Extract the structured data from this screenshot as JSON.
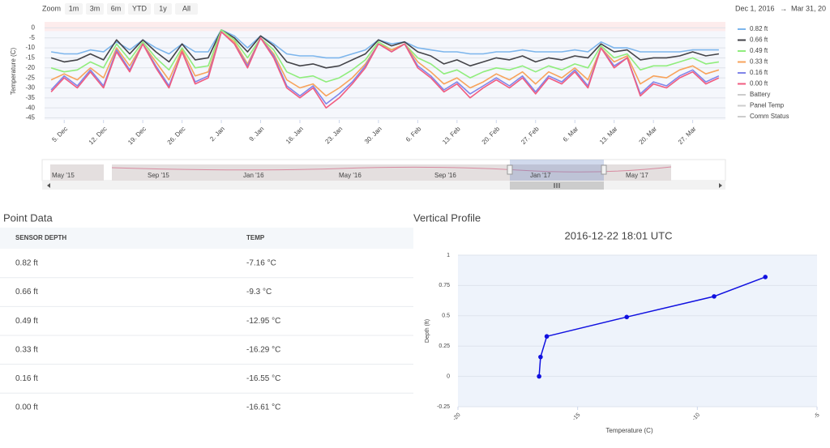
{
  "toolbar": {
    "zoom_label": "Zoom",
    "buttons": [
      "1m",
      "3m",
      "6m",
      "YTD",
      "1y",
      "All"
    ],
    "range_start": "Dec 1, 2016",
    "range_sep": "→",
    "range_end": "Mar 31, 20"
  },
  "chart_data": [
    {
      "type": "line",
      "y_label": "Temperature (C)",
      "categories": [
        null,
        "5. Dec",
        null,
        null,
        "12. Dec",
        null,
        null,
        "19. Dec",
        null,
        null,
        "26. Dec",
        null,
        null,
        "2. Jan",
        null,
        null,
        "9. Jan",
        null,
        null,
        "16. Jan",
        null,
        null,
        "23. Jan",
        null,
        null,
        "30. Jan",
        null,
        null,
        "6. Feb",
        null,
        null,
        "13. Feb",
        null,
        null,
        "20. Feb",
        null,
        null,
        "27. Feb",
        null,
        null,
        "6. Mar",
        null,
        null,
        "13. Mar",
        null,
        null,
        "20. Mar",
        null,
        null,
        "27. Mar",
        null,
        null
      ],
      "series": [
        {
          "name": "0.82 ft",
          "color": "#7cb5ec",
          "values": [
            -12,
            -13,
            -13,
            -11,
            -12,
            -7,
            -11,
            -6,
            -10,
            -13,
            -8,
            -12,
            -12,
            -1,
            -4,
            -10,
            -4,
            -8,
            -13,
            -14,
            -14,
            -15,
            -15,
            -13,
            -11,
            -6,
            -8,
            -7,
            -10,
            -11,
            -12,
            -12,
            -13,
            -13,
            -12,
            -12,
            -11,
            -12,
            -12,
            -12,
            -11,
            -12,
            -7,
            -10,
            -10,
            -12,
            -12,
            -12,
            -12,
            -11,
            -11,
            -11
          ]
        },
        {
          "name": "0.66 ft",
          "color": "#434348",
          "values": [
            -15,
            -17,
            -16,
            -13,
            -16,
            -6,
            -13,
            -6,
            -12,
            -17,
            -8,
            -16,
            -15,
            -1,
            -5,
            -12,
            -4,
            -9,
            -17,
            -19,
            -18,
            -20,
            -19,
            -16,
            -13,
            -6,
            -9,
            -7,
            -12,
            -14,
            -18,
            -16,
            -19,
            -17,
            -15,
            -16,
            -14,
            -17,
            -15,
            -16,
            -14,
            -15,
            -8,
            -12,
            -11,
            -16,
            -15,
            -15,
            -14,
            -12,
            -14,
            -13
          ]
        },
        {
          "name": "0.49 ft",
          "color": "#90ed7d",
          "values": [
            -20,
            -22,
            -21,
            -17,
            -20,
            -8,
            -16,
            -7,
            -15,
            -21,
            -10,
            -20,
            -19,
            -1,
            -6,
            -15,
            -5,
            -11,
            -22,
            -25,
            -24,
            -27,
            -25,
            -21,
            -16,
            -7,
            -11,
            -8,
            -15,
            -18,
            -23,
            -21,
            -25,
            -22,
            -20,
            -21,
            -19,
            -22,
            -19,
            -21,
            -18,
            -20,
            -9,
            -15,
            -13,
            -21,
            -19,
            -19,
            -17,
            -15,
            -18,
            -17
          ]
        },
        {
          "name": "0.33 ft",
          "color": "#f7a35c",
          "values": [
            -26,
            -23,
            -26,
            -20,
            -25,
            -10,
            -19,
            -8,
            -17,
            -26,
            -11,
            -24,
            -22,
            -2,
            -7,
            -18,
            -5,
            -13,
            -26,
            -30,
            -28,
            -34,
            -30,
            -25,
            -18,
            -8,
            -11,
            -8,
            -17,
            -22,
            -28,
            -25,
            -30,
            -27,
            -23,
            -26,
            -22,
            -28,
            -22,
            -25,
            -20,
            -26,
            -10,
            -17,
            -14,
            -28,
            -24,
            -25,
            -21,
            -19,
            -23,
            -21
          ]
        },
        {
          "name": "0.16 ft",
          "color": "#8085e9",
          "values": [
            -31,
            -24,
            -29,
            -21,
            -29,
            -11,
            -21,
            -8,
            -19,
            -29,
            -12,
            -27,
            -24,
            -2,
            -8,
            -19,
            -5,
            -14,
            -29,
            -34,
            -29,
            -38,
            -33,
            -27,
            -19,
            -8,
            -12,
            -8,
            -19,
            -24,
            -31,
            -27,
            -33,
            -29,
            -25,
            -29,
            -24,
            -32,
            -24,
            -27,
            -21,
            -29,
            -10,
            -19,
            -15,
            -33,
            -27,
            -29,
            -24,
            -21,
            -27,
            -24
          ]
        },
        {
          "name": "0.00 ft",
          "color": "#f15c80",
          "values": [
            -32,
            -25,
            -30,
            -22,
            -30,
            -12,
            -22,
            -8,
            -20,
            -30,
            -12,
            -28,
            -25,
            -2,
            -8,
            -20,
            -5,
            -15,
            -30,
            -35,
            -30,
            -40,
            -35,
            -28,
            -20,
            -8,
            -12,
            -8,
            -20,
            -25,
            -32,
            -28,
            -35,
            -30,
            -26,
            -30,
            -25,
            -33,
            -25,
            -28,
            -22,
            -30,
            -10,
            -20,
            -15,
            -34,
            -28,
            -30,
            -25,
            -22,
            -28,
            -25
          ]
        }
      ],
      "legend_inactive": [
        "Battery",
        "Panel Temp",
        "Comm Status"
      ],
      "ylim": [
        -46,
        3
      ],
      "yticks": [
        0,
        -5,
        -10,
        -15,
        -20,
        -25,
        -30,
        -35,
        -40,
        -45
      ],
      "grid": true,
      "navigator_labels": [
        "May '15",
        "Sep '15",
        "Jan '16",
        "May '16",
        "Sep '16",
        "Jan '17",
        "May '17"
      ]
    },
    {
      "type": "line",
      "title": "2016-12-22 18:01 UTC",
      "x_label": "Temperature (C)",
      "y_label": "Depth (ft)",
      "x": [
        -7.16,
        -9.3,
        -12.95,
        -16.29,
        -16.55,
        -16.61
      ],
      "series": [
        {
          "color": "#1010e0",
          "values": [
            0.82,
            0.66,
            0.49,
            0.33,
            0.16,
            0
          ]
        }
      ],
      "xlim": [
        -20,
        -5
      ],
      "xticks": [
        -20,
        -15,
        -10,
        -5
      ],
      "ylim": [
        -0.25,
        1
      ],
      "yticks": [
        -0.25,
        0,
        0.25,
        0.5,
        0.75,
        1
      ],
      "grid": true
    }
  ],
  "point_data": {
    "title": "Point Data",
    "columns": [
      "SENSOR DEPTH",
      "TEMP"
    ],
    "rows": [
      [
        "0.82 ft",
        "-7.16 °C"
      ],
      [
        "0.66 ft",
        "-9.3 °C"
      ],
      [
        "0.49 ft",
        "-12.95 °C"
      ],
      [
        "0.33 ft",
        "-16.29 °C"
      ],
      [
        "0.16 ft",
        "-16.55 °C"
      ],
      [
        "0.00 ft",
        "-16.61 °C"
      ]
    ]
  },
  "profile_panel": {
    "title": "Vertical Profile"
  }
}
